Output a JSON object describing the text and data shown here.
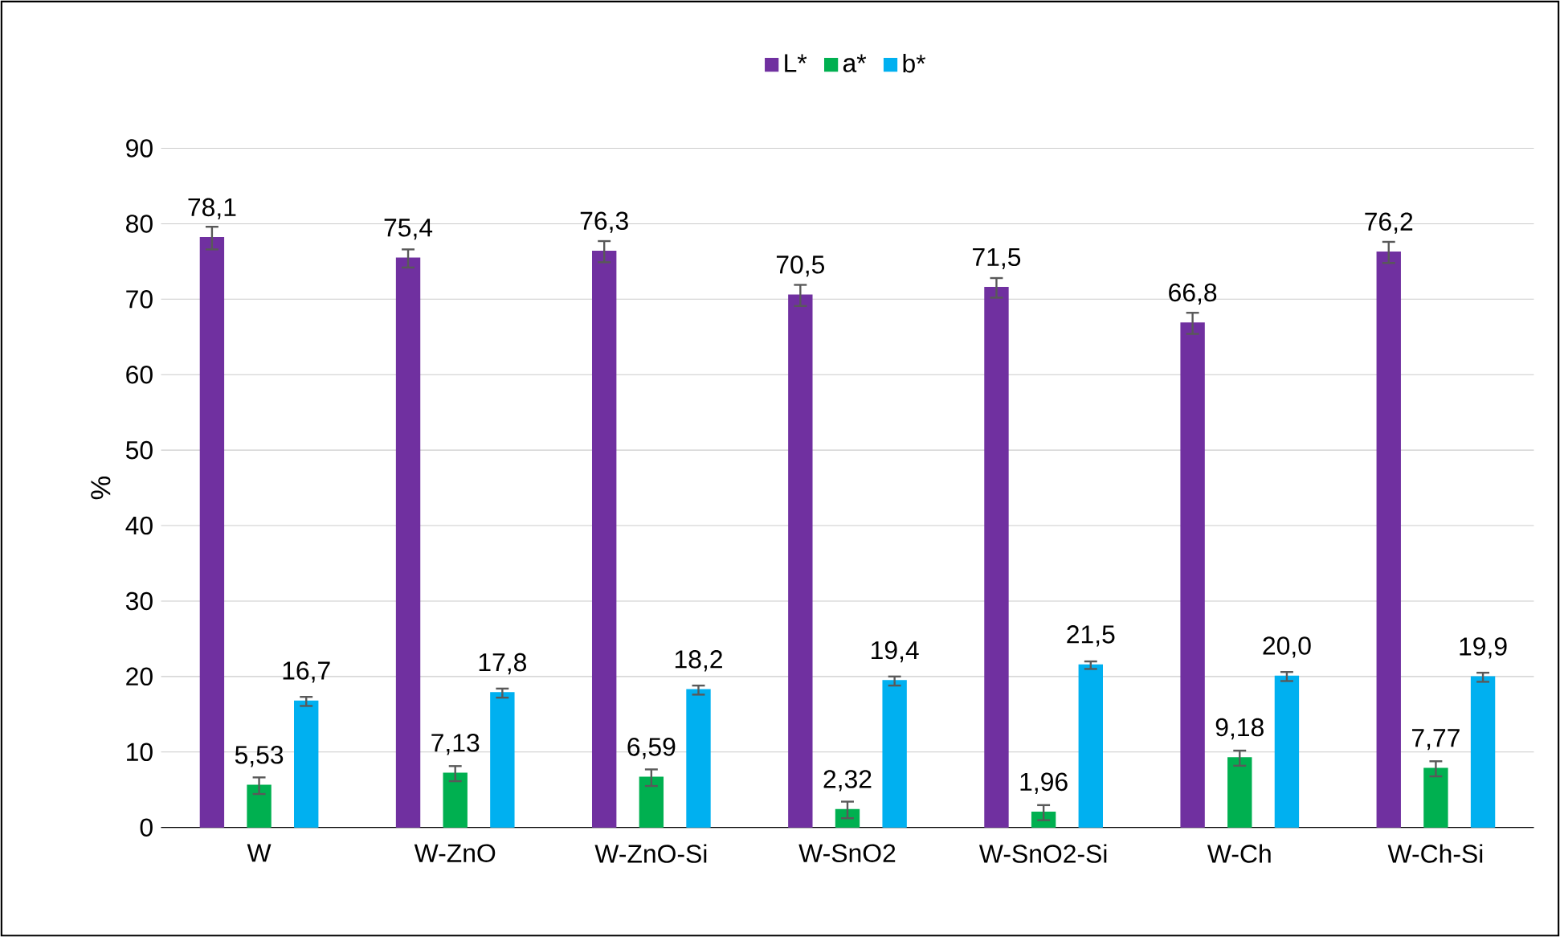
{
  "chart_data": {
    "type": "bar",
    "ylabel": "%",
    "categories": [
      "W",
      "W-ZnO",
      "W-ZnO-Si",
      "W-SnO2",
      "W-SnO2-Si",
      "W-Ch",
      "W-Ch-Si"
    ],
    "series": [
      {
        "name": "L*",
        "color": "#7030a0",
        "values": [
          78.1,
          75.4,
          76.3,
          70.5,
          71.5,
          66.8,
          76.2
        ],
        "errors": [
          1.5,
          1.2,
          1.4,
          1.4,
          1.3,
          1.4,
          1.4
        ],
        "value_labels": [
          "78,1",
          "75,4",
          "76,3",
          "70,5",
          "71,5",
          "66,8",
          "76,2"
        ]
      },
      {
        "name": "a*",
        "color": "#00b050",
        "values": [
          5.53,
          7.13,
          6.59,
          2.32,
          1.96,
          9.18,
          7.77
        ],
        "errors": [
          1.1,
          1.0,
          1.1,
          1.1,
          1.0,
          1.0,
          1.0
        ],
        "value_labels": [
          "5,53",
          "7,13",
          "6,59",
          "2,32",
          "1,96",
          "9,18",
          "7,77"
        ]
      },
      {
        "name": "b*",
        "color": "#00b0f0",
        "values": [
          16.7,
          17.8,
          18.2,
          19.4,
          21.5,
          20.0,
          19.9
        ],
        "errors": [
          0.6,
          0.6,
          0.6,
          0.6,
          0.5,
          0.6,
          0.6
        ],
        "value_labels": [
          "16,7",
          "17,8",
          "18,2",
          "19,4",
          "21,5",
          "20,0",
          "19,9"
        ]
      }
    ],
    "ylim": [
      0,
      90
    ],
    "yticks": [
      0,
      10,
      20,
      30,
      40,
      50,
      60,
      70,
      80,
      90
    ],
    "grid": "y",
    "legend": "top"
  }
}
